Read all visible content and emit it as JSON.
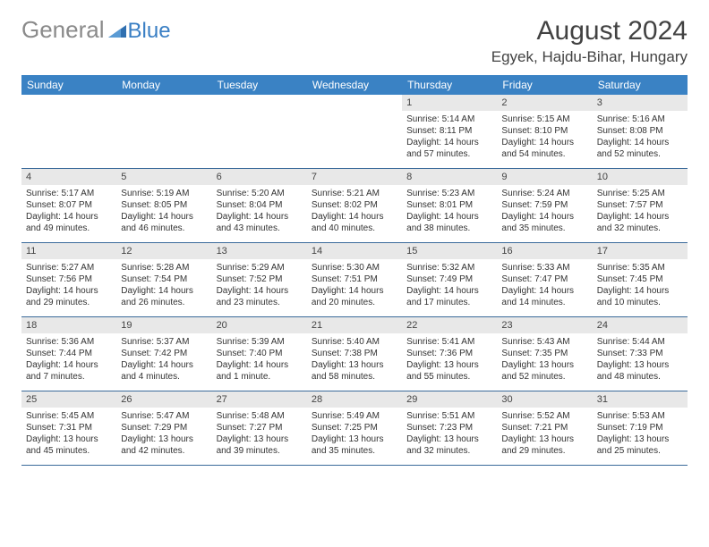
{
  "logo": {
    "general": "General",
    "blue": "Blue"
  },
  "title": "August 2024",
  "location": "Egyek, Hajdu-Bihar, Hungary",
  "colors": {
    "header_bg": "#3a82c4",
    "header_text": "#ffffff",
    "band_bg": "#e8e8e8",
    "rule": "#3a6a9a",
    "logo_gray": "#8a8a8a",
    "logo_blue": "#3a7fc4"
  },
  "day_headers": [
    "Sunday",
    "Monday",
    "Tuesday",
    "Wednesday",
    "Thursday",
    "Friday",
    "Saturday"
  ],
  "weeks": [
    [
      null,
      null,
      null,
      null,
      {
        "num": "1",
        "sunrise": "Sunrise: 5:14 AM",
        "sunset": "Sunset: 8:11 PM",
        "daylight1": "Daylight: 14 hours",
        "daylight2": "and 57 minutes."
      },
      {
        "num": "2",
        "sunrise": "Sunrise: 5:15 AM",
        "sunset": "Sunset: 8:10 PM",
        "daylight1": "Daylight: 14 hours",
        "daylight2": "and 54 minutes."
      },
      {
        "num": "3",
        "sunrise": "Sunrise: 5:16 AM",
        "sunset": "Sunset: 8:08 PM",
        "daylight1": "Daylight: 14 hours",
        "daylight2": "and 52 minutes."
      }
    ],
    [
      {
        "num": "4",
        "sunrise": "Sunrise: 5:17 AM",
        "sunset": "Sunset: 8:07 PM",
        "daylight1": "Daylight: 14 hours",
        "daylight2": "and 49 minutes."
      },
      {
        "num": "5",
        "sunrise": "Sunrise: 5:19 AM",
        "sunset": "Sunset: 8:05 PM",
        "daylight1": "Daylight: 14 hours",
        "daylight2": "and 46 minutes."
      },
      {
        "num": "6",
        "sunrise": "Sunrise: 5:20 AM",
        "sunset": "Sunset: 8:04 PM",
        "daylight1": "Daylight: 14 hours",
        "daylight2": "and 43 minutes."
      },
      {
        "num": "7",
        "sunrise": "Sunrise: 5:21 AM",
        "sunset": "Sunset: 8:02 PM",
        "daylight1": "Daylight: 14 hours",
        "daylight2": "and 40 minutes."
      },
      {
        "num": "8",
        "sunrise": "Sunrise: 5:23 AM",
        "sunset": "Sunset: 8:01 PM",
        "daylight1": "Daylight: 14 hours",
        "daylight2": "and 38 minutes."
      },
      {
        "num": "9",
        "sunrise": "Sunrise: 5:24 AM",
        "sunset": "Sunset: 7:59 PM",
        "daylight1": "Daylight: 14 hours",
        "daylight2": "and 35 minutes."
      },
      {
        "num": "10",
        "sunrise": "Sunrise: 5:25 AM",
        "sunset": "Sunset: 7:57 PM",
        "daylight1": "Daylight: 14 hours",
        "daylight2": "and 32 minutes."
      }
    ],
    [
      {
        "num": "11",
        "sunrise": "Sunrise: 5:27 AM",
        "sunset": "Sunset: 7:56 PM",
        "daylight1": "Daylight: 14 hours",
        "daylight2": "and 29 minutes."
      },
      {
        "num": "12",
        "sunrise": "Sunrise: 5:28 AM",
        "sunset": "Sunset: 7:54 PM",
        "daylight1": "Daylight: 14 hours",
        "daylight2": "and 26 minutes."
      },
      {
        "num": "13",
        "sunrise": "Sunrise: 5:29 AM",
        "sunset": "Sunset: 7:52 PM",
        "daylight1": "Daylight: 14 hours",
        "daylight2": "and 23 minutes."
      },
      {
        "num": "14",
        "sunrise": "Sunrise: 5:30 AM",
        "sunset": "Sunset: 7:51 PM",
        "daylight1": "Daylight: 14 hours",
        "daylight2": "and 20 minutes."
      },
      {
        "num": "15",
        "sunrise": "Sunrise: 5:32 AM",
        "sunset": "Sunset: 7:49 PM",
        "daylight1": "Daylight: 14 hours",
        "daylight2": "and 17 minutes."
      },
      {
        "num": "16",
        "sunrise": "Sunrise: 5:33 AM",
        "sunset": "Sunset: 7:47 PM",
        "daylight1": "Daylight: 14 hours",
        "daylight2": "and 14 minutes."
      },
      {
        "num": "17",
        "sunrise": "Sunrise: 5:35 AM",
        "sunset": "Sunset: 7:45 PM",
        "daylight1": "Daylight: 14 hours",
        "daylight2": "and 10 minutes."
      }
    ],
    [
      {
        "num": "18",
        "sunrise": "Sunrise: 5:36 AM",
        "sunset": "Sunset: 7:44 PM",
        "daylight1": "Daylight: 14 hours",
        "daylight2": "and 7 minutes."
      },
      {
        "num": "19",
        "sunrise": "Sunrise: 5:37 AM",
        "sunset": "Sunset: 7:42 PM",
        "daylight1": "Daylight: 14 hours",
        "daylight2": "and 4 minutes."
      },
      {
        "num": "20",
        "sunrise": "Sunrise: 5:39 AM",
        "sunset": "Sunset: 7:40 PM",
        "daylight1": "Daylight: 14 hours",
        "daylight2": "and 1 minute."
      },
      {
        "num": "21",
        "sunrise": "Sunrise: 5:40 AM",
        "sunset": "Sunset: 7:38 PM",
        "daylight1": "Daylight: 13 hours",
        "daylight2": "and 58 minutes."
      },
      {
        "num": "22",
        "sunrise": "Sunrise: 5:41 AM",
        "sunset": "Sunset: 7:36 PM",
        "daylight1": "Daylight: 13 hours",
        "daylight2": "and 55 minutes."
      },
      {
        "num": "23",
        "sunrise": "Sunrise: 5:43 AM",
        "sunset": "Sunset: 7:35 PM",
        "daylight1": "Daylight: 13 hours",
        "daylight2": "and 52 minutes."
      },
      {
        "num": "24",
        "sunrise": "Sunrise: 5:44 AM",
        "sunset": "Sunset: 7:33 PM",
        "daylight1": "Daylight: 13 hours",
        "daylight2": "and 48 minutes."
      }
    ],
    [
      {
        "num": "25",
        "sunrise": "Sunrise: 5:45 AM",
        "sunset": "Sunset: 7:31 PM",
        "daylight1": "Daylight: 13 hours",
        "daylight2": "and 45 minutes."
      },
      {
        "num": "26",
        "sunrise": "Sunrise: 5:47 AM",
        "sunset": "Sunset: 7:29 PM",
        "daylight1": "Daylight: 13 hours",
        "daylight2": "and 42 minutes."
      },
      {
        "num": "27",
        "sunrise": "Sunrise: 5:48 AM",
        "sunset": "Sunset: 7:27 PM",
        "daylight1": "Daylight: 13 hours",
        "daylight2": "and 39 minutes."
      },
      {
        "num": "28",
        "sunrise": "Sunrise: 5:49 AM",
        "sunset": "Sunset: 7:25 PM",
        "daylight1": "Daylight: 13 hours",
        "daylight2": "and 35 minutes."
      },
      {
        "num": "29",
        "sunrise": "Sunrise: 5:51 AM",
        "sunset": "Sunset: 7:23 PM",
        "daylight1": "Daylight: 13 hours",
        "daylight2": "and 32 minutes."
      },
      {
        "num": "30",
        "sunrise": "Sunrise: 5:52 AM",
        "sunset": "Sunset: 7:21 PM",
        "daylight1": "Daylight: 13 hours",
        "daylight2": "and 29 minutes."
      },
      {
        "num": "31",
        "sunrise": "Sunrise: 5:53 AM",
        "sunset": "Sunset: 7:19 PM",
        "daylight1": "Daylight: 13 hours",
        "daylight2": "and 25 minutes."
      }
    ]
  ]
}
